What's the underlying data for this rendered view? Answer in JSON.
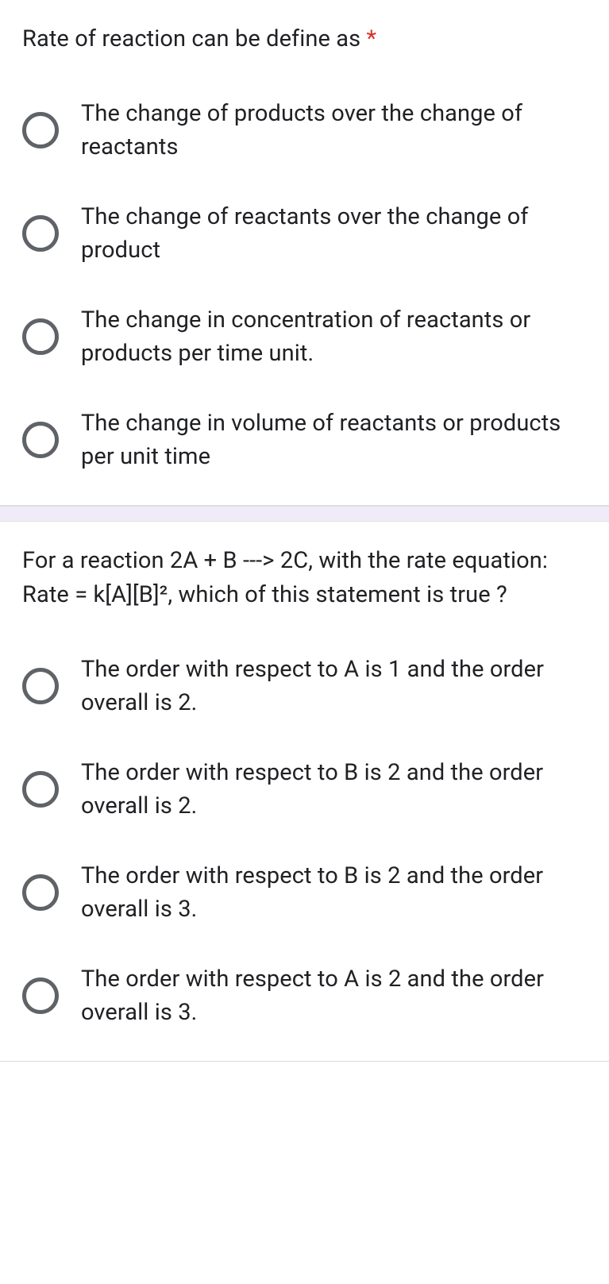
{
  "questions": [
    {
      "text": "Rate of reaction can be define as ",
      "required_marker": "*",
      "options": [
        "The change of products over the change of reactants",
        "The change of reactants over the change of product",
        "The change in concentration of reactants or products per time unit.",
        "The change in volume of reactants or products per unit time"
      ]
    },
    {
      "text": "For a reaction 2A + B  --->  2C, with the rate equation: Rate = k[A][B]², which of this statement is true ?",
      "required_marker": "",
      "options": [
        "The order with respect to A is 1 and the order overall is 2.",
        "The order with respect to B is 2 and the order overall is 2.",
        "The order with respect to B is 2 and the order overall is 3.",
        "The order with respect to A is 2 and the order overall is 3."
      ]
    }
  ]
}
